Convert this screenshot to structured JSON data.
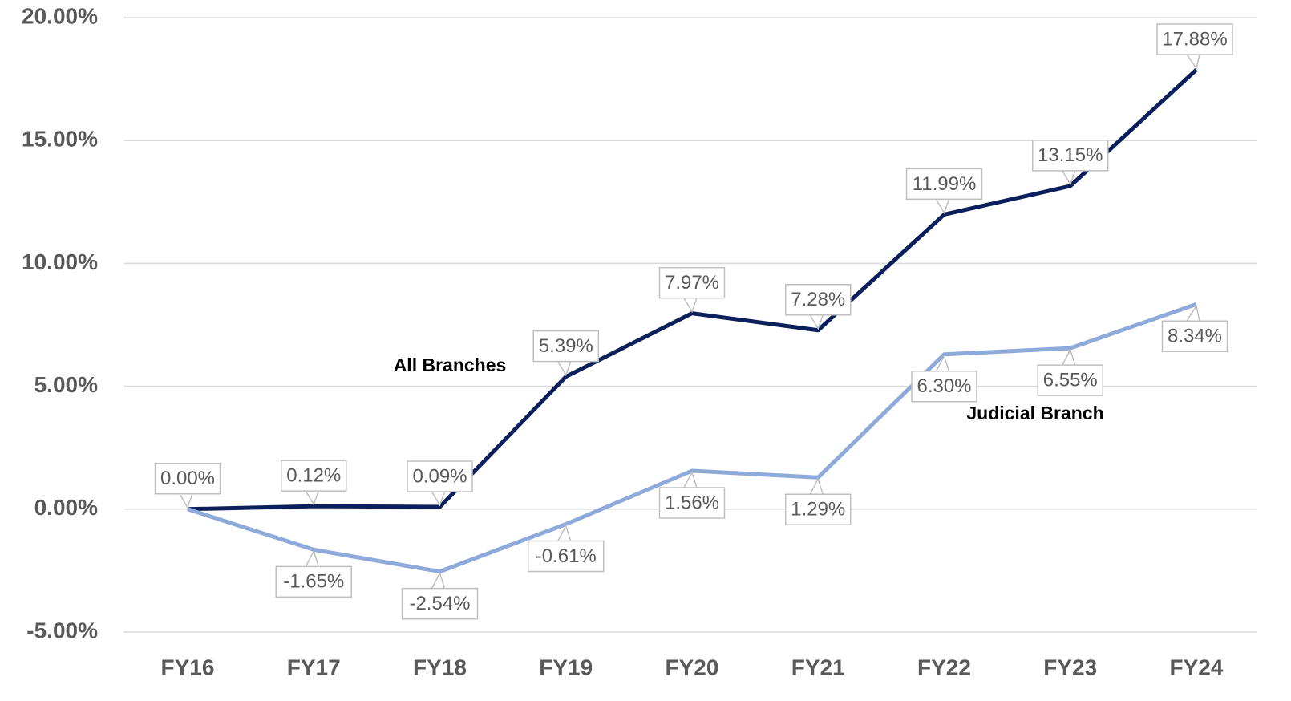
{
  "chart_data": {
    "type": "line",
    "categories": [
      "FY16",
      "FY17",
      "FY18",
      "FY19",
      "FY20",
      "FY21",
      "FY22",
      "FY23",
      "FY24"
    ],
    "series": [
      {
        "name": "All Branches",
        "color": "#0b1f5c",
        "values": [
          0,
          0.12,
          0.09,
          5.39,
          7.97,
          7.28,
          11.99,
          13.15,
          17.88
        ],
        "value_labels": [
          "0.00%",
          "0.12%",
          "0.09%",
          "5.39%",
          "7.97%",
          "7.28%",
          "11.99%",
          "13.15%",
          "17.88%"
        ]
      },
      {
        "name": "Judicial Branch",
        "color": "#8eaadb",
        "values": [
          0,
          -1.65,
          -2.54,
          -0.61,
          1.56,
          1.29,
          6.3,
          6.55,
          8.34
        ],
        "value_labels": [
          null,
          "-1.65%",
          "-2.54%",
          "-0.61%",
          "1.56%",
          "1.29%",
          "6.30%",
          "6.55%",
          "8.34%"
        ]
      }
    ],
    "ylim": [
      -5,
      20
    ],
    "yticks": [
      {
        "value": -5,
        "label": "-5.00%"
      },
      {
        "value": 0,
        "label": "0.00%"
      },
      {
        "value": 5,
        "label": "5.00%"
      },
      {
        "value": 10,
        "label": "10.00%"
      },
      {
        "value": 15,
        "label": "15.00%"
      },
      {
        "value": 20,
        "label": "20.00%"
      }
    ],
    "grid": true
  }
}
